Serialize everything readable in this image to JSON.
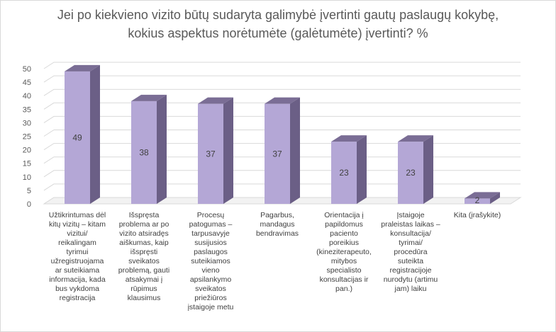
{
  "chart_data": {
    "type": "bar",
    "title": "Jei po kiekvieno vizito būtų sudaryta galimybė įvertinti gautų paslaugų kokybę,",
    "subtitle": "kokius aspektus norėtumėte (galėtumėte) įvertinti?  %",
    "categories": [
      "Užtikrintumas dėl\nkitų vizitų – kitam\nvizitui/\nreikalingam\ntyrimui\nužregistruojama\nar suteikiama\ninformacija, kada\nbus vykdoma\nregistracija",
      "Išspręsta\nproblema ar po\nvizito atsiradęs\naiškumas, kaip\nišspręsti\nsveikatos\nproblemą, gauti\natsakymai į\nrūpimus\nklausimus",
      "Procesų\npatogumas –\ntarpusavyje\nsusijusios\npaslaugos\nsuteikiamos\nvieno\napsilankymo\nsveikatos\npriežiūros\nįstaigoje metu",
      "Pagarbus,\nmandagus\nbendravimas",
      "Orientacija į\npapildomus\npaciento\nporeikius\n(kineziterapeuto,\nmitybos\nspecialisto\nkonsultacijas ir\npan.)",
      "Įstaigoje\npraleistas laikas –\nkonsultacija/\ntyrimai/\nprocedūra\nsuteikta\nregistracijoje\nnurodytu (artimu\njam) laiku",
      "Kita (įrašykite)"
    ],
    "values": [
      49,
      38,
      37,
      37,
      23,
      23,
      2
    ],
    "ylim": [
      0,
      50
    ],
    "yticks": [
      0,
      5,
      10,
      15,
      20,
      25,
      30,
      35,
      40,
      45,
      50
    ],
    "grid": true,
    "legend": "none",
    "colors": {
      "bar_front": "#b4a7d6",
      "bar_top": "#7a6d95",
      "bar_side": "#6b5f86",
      "grid": "#d9d9d9",
      "text": "#595959"
    }
  }
}
